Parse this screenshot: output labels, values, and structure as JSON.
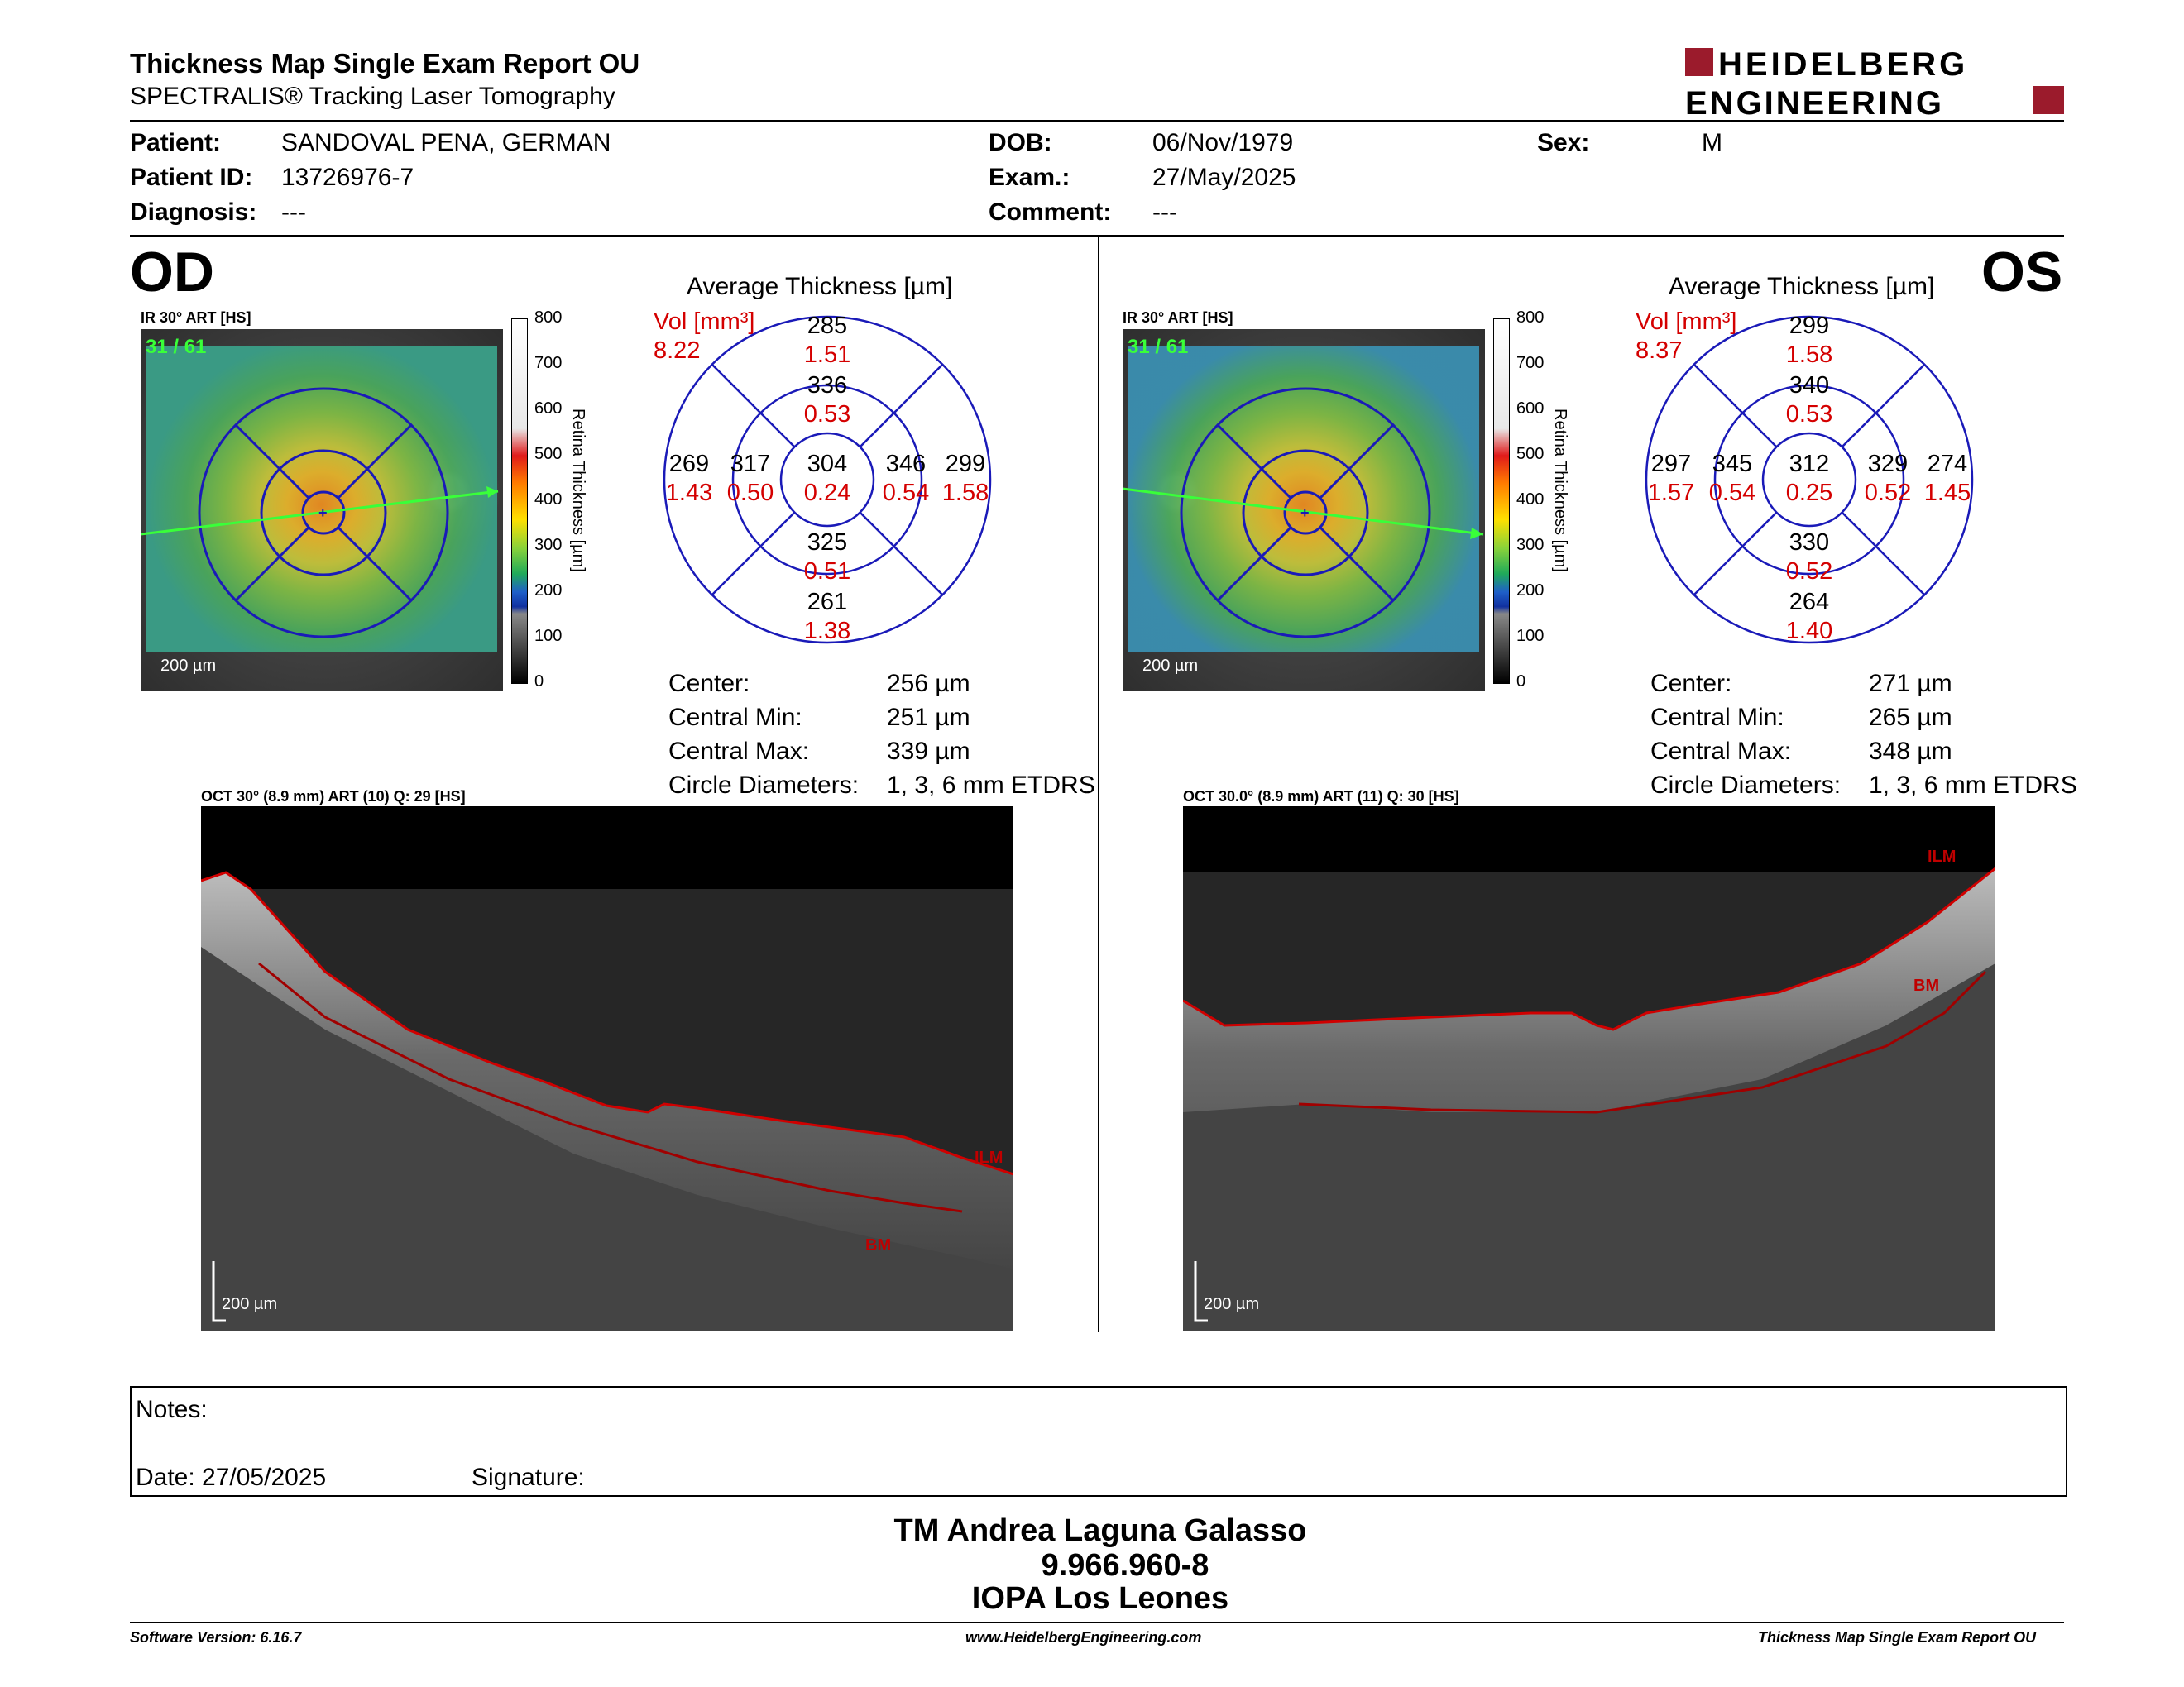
{
  "header": {
    "title": "Thickness Map Single Exam Report OU",
    "subtitle": "SPECTRALIS® Tracking Laser Tomography",
    "logo_line1": "HEIDELBERG",
    "logo_line2": "ENGINEERING",
    "logo_color": "#9b1b2c"
  },
  "patient": {
    "patient_label": "Patient:",
    "patient_value": "SANDOVAL PENA, GERMAN",
    "id_label": "Patient ID:",
    "id_value": "13726976-7",
    "diagnosis_label": "Diagnosis:",
    "diagnosis_value": "---",
    "dob_label": "DOB:",
    "dob_value": "06/Nov/1979",
    "exam_label": "Exam.:",
    "exam_value": "27/May/2025",
    "comment_label": "Comment:",
    "comment_value": "---",
    "sex_label": "Sex:",
    "sex_value": "M"
  },
  "od": {
    "eye": "OD",
    "fundus_label": "IR 30° ART [HS]",
    "fundus_count": "31 / 61",
    "fundus_scale": "200 µm",
    "avg_title": "Average Thickness [µm]",
    "vol_label": "Vol [mm³]",
    "vol_value": "8.22",
    "sectors": {
      "outer_sup": "285",
      "outer_sup_vol": "1.51",
      "inner_sup": "336",
      "inner_sup_vol": "0.53",
      "outer_temp": "269",
      "outer_temp_vol": "1.43",
      "inner_temp": "317",
      "inner_temp_vol": "0.50",
      "center": "304",
      "center_vol": "0.24",
      "inner_nas": "346",
      "inner_nas_vol": "0.54",
      "outer_nas": "299",
      "outer_nas_vol": "1.58",
      "inner_inf": "325",
      "inner_inf_vol": "0.51",
      "outer_inf": "261",
      "outer_inf_vol": "1.38"
    },
    "stats": [
      {
        "label": "Center:",
        "value": "256 µm"
      },
      {
        "label": "Central Min:",
        "value": "251 µm"
      },
      {
        "label": "Central Max:",
        "value": "339 µm"
      },
      {
        "label": "Circle Diameters:",
        "value": "1, 3, 6 mm ETDRS"
      }
    ],
    "oct_label": "OCT 30° (8.9 mm) ART (10) Q: 29 [HS]",
    "oct_scale": "200 µm",
    "ilm_tag": "ILM",
    "bm_tag": "BM"
  },
  "os": {
    "eye": "OS",
    "fundus_label": "IR 30° ART [HS]",
    "fundus_count": "31 / 61",
    "fundus_scale": "200 µm",
    "avg_title": "Average Thickness [µm]",
    "vol_label": "Vol [mm³]",
    "vol_value": "8.37",
    "sectors": {
      "outer_sup": "299",
      "outer_sup_vol": "1.58",
      "inner_sup": "340",
      "inner_sup_vol": "0.53",
      "outer_temp": "297",
      "outer_temp_vol": "1.57",
      "inner_temp": "345",
      "inner_temp_vol": "0.54",
      "center": "312",
      "center_vol": "0.25",
      "inner_nas": "329",
      "inner_nas_vol": "0.52",
      "outer_nas": "274",
      "outer_nas_vol": "1.45",
      "inner_inf": "330",
      "inner_inf_vol": "0.52",
      "outer_inf": "264",
      "outer_inf_vol": "1.40"
    },
    "stats": [
      {
        "label": "Center:",
        "value": "271 µm"
      },
      {
        "label": "Central Min:",
        "value": "265 µm"
      },
      {
        "label": "Central Max:",
        "value": "348 µm"
      },
      {
        "label": "Circle Diameters:",
        "value": "1, 3, 6 mm ETDRS"
      }
    ],
    "oct_label": "OCT 30.0° (8.9 mm) ART (11) Q: 30 [HS]",
    "oct_scale": "200 µm",
    "ilm_tag": "ILM",
    "bm_tag": "BM"
  },
  "colorbar": {
    "ticks": [
      "800",
      "700",
      "600",
      "500",
      "400",
      "300",
      "200",
      "100",
      "0"
    ],
    "title": "Retina Thickness [µm]"
  },
  "notes": {
    "notes_label": "Notes:",
    "date_label": "Date: 27/05/2025",
    "signature_label": "Signature:"
  },
  "signature": {
    "line1": "TM Andrea Laguna Galasso",
    "line2": "9.966.960-8",
    "line3": "IOPA Los Leones"
  },
  "footer": {
    "software": "Software Version: 6.16.7",
    "website": "www.HeidelbergEngineering.com",
    "report": "Thickness Map Single Exam Report OU"
  },
  "colors": {
    "etdrs_grid": "#1a1ab8",
    "volume_red": "#d40000",
    "ilm_red": "#d00000"
  }
}
